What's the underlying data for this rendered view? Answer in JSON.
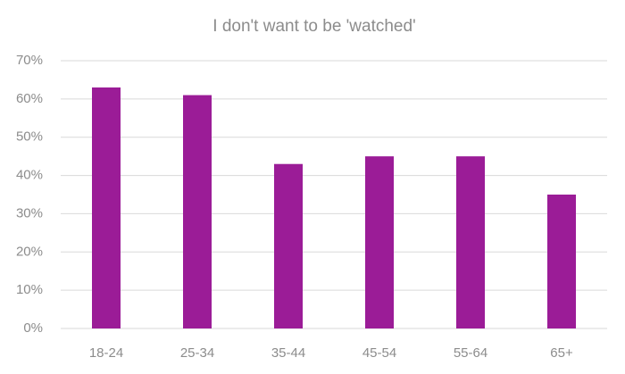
{
  "chart_data": {
    "type": "bar",
    "title": "I don't want to be 'watched'",
    "categories": [
      "18-24",
      "25-34",
      "35-44",
      "45-54",
      "55-64",
      "65+"
    ],
    "values": [
      63,
      61,
      43,
      45,
      45,
      35
    ],
    "color": "#9b1c97",
    "ylim": [
      0,
      70
    ],
    "yticks": [
      {
        "value": 0,
        "label": "0%"
      },
      {
        "value": 10,
        "label": "10%"
      },
      {
        "value": 20,
        "label": "20%"
      },
      {
        "value": 30,
        "label": "30%"
      },
      {
        "value": 40,
        "label": "40%"
      },
      {
        "value": 50,
        "label": "50%"
      },
      {
        "value": 60,
        "label": "60%"
      },
      {
        "value": 70,
        "label": "70%"
      }
    ],
    "grid": true
  }
}
